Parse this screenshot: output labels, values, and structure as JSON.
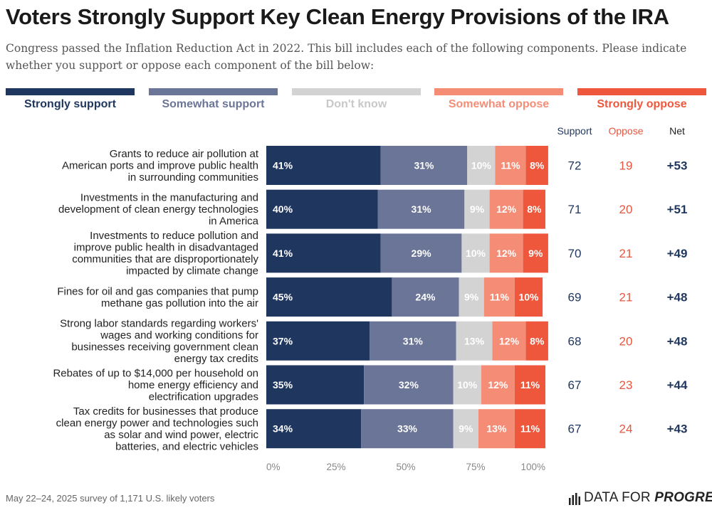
{
  "title": "Voters Strongly Support Key Clean Energy Provisions of the IRA",
  "subtitle": "Congress passed the Inflation Reduction Act in 2022. This bill includes each of the following components. Please indicate whether you support or oppose each component of the bill below:",
  "footnote": "May 22–24, 2025 survey of 1,171 U.S. likely voters",
  "brand": {
    "part1": "DATA FOR ",
    "part2": "PROGRESS"
  },
  "colors": {
    "strongly_support": "#1f365e",
    "somewhat_support": "#6b7598",
    "dont_know": "#d3d3d3",
    "somewhat_oppose": "#f58d76",
    "strongly_oppose": "#ef573c",
    "support_text": "#1f365e",
    "oppose_text": "#e8563f",
    "net_text": "#1f365e"
  },
  "chart_data": {
    "type": "bar",
    "orientation": "horizontal",
    "stacked": true,
    "categories": [
      "Grants to reduce air pollution at American ports and improve public health in surrounding communities",
      "Investments in the manufacturing and development of clean energy technologies in America",
      "Investments to reduce pollution and improve public health in disadvantaged communities that are disproportionately impacted by climate change",
      "Fines for oil and gas companies that pump methane gas pollution into the air",
      "Strong labor standards regarding workers' wages and working conditions for businesses receiving government clean energy tax credits",
      "Rebates of up to $14,000 per household on home energy efficiency and electrification upgrades",
      "Tax credits for businesses that produce clean energy power and technologies such as solar and wind power, electric batteries, and electric vehicles"
    ],
    "series": [
      {
        "name": "Strongly support",
        "values": [
          41,
          40,
          41,
          45,
          37,
          35,
          34
        ]
      },
      {
        "name": "Somewhat support",
        "values": [
          31,
          31,
          29,
          24,
          31,
          32,
          33
        ]
      },
      {
        "name": "Don't know",
        "values": [
          10,
          9,
          10,
          9,
          13,
          10,
          9
        ]
      },
      {
        "name": "Somewhat oppose",
        "values": [
          11,
          12,
          12,
          11,
          12,
          12,
          13
        ]
      },
      {
        "name": "Strongly oppose",
        "values": [
          8,
          8,
          9,
          10,
          8,
          11,
          11
        ]
      }
    ],
    "summary_headers": [
      "Support",
      "Oppose",
      "Net"
    ],
    "support": [
      72,
      71,
      70,
      69,
      68,
      67,
      67
    ],
    "oppose": [
      19,
      20,
      21,
      21,
      20,
      23,
      24
    ],
    "net": [
      "+53",
      "+51",
      "+49",
      "+48",
      "+48",
      "+44",
      "+43"
    ],
    "x_ticks": [
      "0%",
      "25%",
      "50%",
      "75%",
      "100%"
    ],
    "xlim": [
      0,
      100
    ],
    "legend_position": "top",
    "grid": false
  }
}
